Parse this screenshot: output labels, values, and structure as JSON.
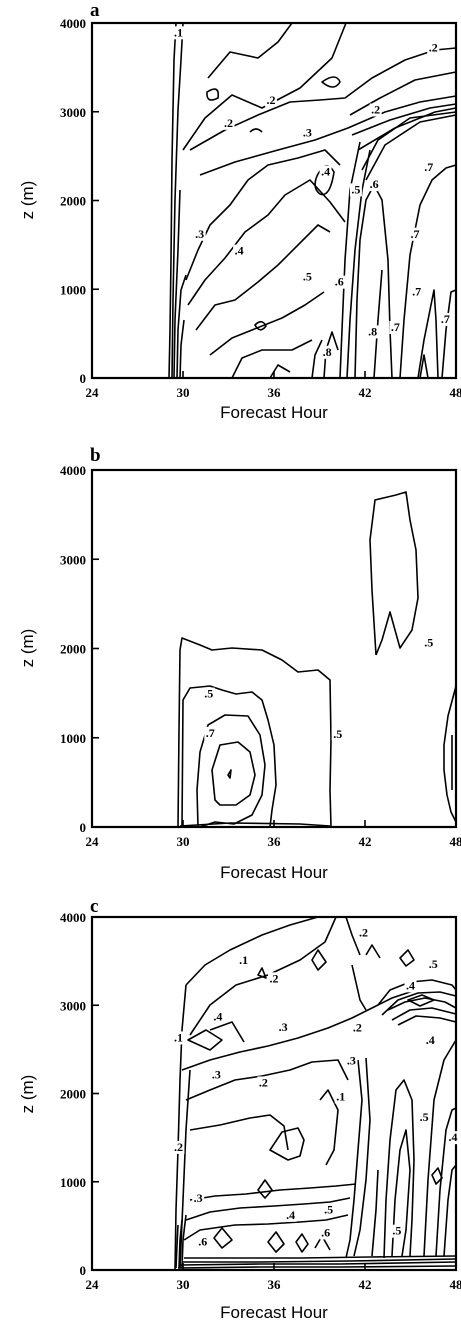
{
  "chart_data": [
    {
      "type": "contour",
      "panel_label": "a",
      "xlabel": "Forecast Hour",
      "ylabel": "z (m)",
      "xlim": [
        24,
        48
      ],
      "ylim": [
        0,
        4000
      ],
      "xticks": [
        24,
        30,
        36,
        42,
        48
      ],
      "yticks": [
        0,
        1000,
        2000,
        3000,
        4000
      ],
      "contour_labels": [
        {
          "text": ".1",
          "x": 29.7,
          "y": 3850
        },
        {
          "text": ".2",
          "x": 46.5,
          "y": 3680
        },
        {
          "text": ".2",
          "x": 35.8,
          "y": 3090
        },
        {
          "text": ".2",
          "x": 33.0,
          "y": 2830
        },
        {
          "text": ".2",
          "x": 42.7,
          "y": 2980
        },
        {
          "text": ".3",
          "x": 38.2,
          "y": 2720
        },
        {
          "text": ".4",
          "x": 39.4,
          "y": 2280
        },
        {
          "text": ".5",
          "x": 41.4,
          "y": 2080
        },
        {
          "text": ".6",
          "x": 42.6,
          "y": 2140
        },
        {
          "text": ".7",
          "x": 46.2,
          "y": 2330
        },
        {
          "text": ".7",
          "x": 45.3,
          "y": 1580
        },
        {
          "text": ".3",
          "x": 31.1,
          "y": 1580
        },
        {
          "text": ".4",
          "x": 33.7,
          "y": 1390
        },
        {
          "text": ".5",
          "x": 38.2,
          "y": 1100
        },
        {
          "text": ".6",
          "x": 40.3,
          "y": 1040
        },
        {
          "text": ".7",
          "x": 45.4,
          "y": 930
        },
        {
          "text": ".7",
          "x": 47.3,
          "y": 620
        },
        {
          "text": ".7",
          "x": 44.0,
          "y": 530
        },
        {
          "text": ".8",
          "x": 42.5,
          "y": 480
        },
        {
          "text": ".8",
          "x": 39.5,
          "y": 250
        }
      ]
    },
    {
      "type": "contour",
      "panel_label": "b",
      "xlabel": "Forecast Hour",
      "ylabel": "z (m)",
      "xlim": [
        24,
        48
      ],
      "ylim": [
        0,
        4000
      ],
      "xticks": [
        24,
        30,
        36,
        42,
        48
      ],
      "yticks": [
        0,
        1000,
        2000,
        3000,
        4000
      ],
      "contour_labels": [
        {
          "text": ".5",
          "x": 31.7,
          "y": 1450
        },
        {
          "text": ".7",
          "x": 31.8,
          "y": 1010
        },
        {
          "text": ".5",
          "x": 40.2,
          "y": 1000
        },
        {
          "text": ".5",
          "x": 46.2,
          "y": 2020
        }
      ]
    },
    {
      "type": "contour",
      "panel_label": "c",
      "xlabel": "Forecast Hour",
      "ylabel": "z (m)",
      "xlim": [
        24,
        48
      ],
      "ylim": [
        0,
        4000
      ],
      "xticks": [
        24,
        30,
        36,
        42,
        48
      ],
      "yticks": [
        0,
        1000,
        2000,
        3000,
        4000
      ],
      "contour_labels": [
        {
          "text": ".2",
          "x": 41.9,
          "y": 3780
        },
        {
          "text": ".1",
          "x": 34.0,
          "y": 3470
        },
        {
          "text": ".2",
          "x": 36.0,
          "y": 3260
        },
        {
          "text": ".5",
          "x": 46.5,
          "y": 3420
        },
        {
          "text": ".4",
          "x": 45.0,
          "y": 3180
        },
        {
          "text": ".4",
          "x": 32.3,
          "y": 2830
        },
        {
          "text": ".3",
          "x": 36.6,
          "y": 2710
        },
        {
          "text": ".2",
          "x": 41.5,
          "y": 2700
        },
        {
          "text": ".3",
          "x": 41.1,
          "y": 2330
        },
        {
          "text": ".4",
          "x": 46.3,
          "y": 2560
        },
        {
          "text": ".1",
          "x": 29.7,
          "y": 2590
        },
        {
          "text": ".3",
          "x": 32.2,
          "y": 2170
        },
        {
          "text": ".2",
          "x": 35.3,
          "y": 2080
        },
        {
          "text": ".1",
          "x": 40.4,
          "y": 1920
        },
        {
          "text": ".5",
          "x": 45.9,
          "y": 1690
        },
        {
          "text": ".4",
          "x": 47.8,
          "y": 1460
        },
        {
          "text": ".2",
          "x": 29.7,
          "y": 1350
        },
        {
          "text": ".3",
          "x": 31.0,
          "y": 770
        },
        {
          "text": ".4",
          "x": 37.1,
          "y": 580
        },
        {
          "text": ".5",
          "x": 39.6,
          "y": 640
        },
        {
          "text": ".6",
          "x": 39.4,
          "y": 380
        },
        {
          "text": ".5",
          "x": 44.1,
          "y": 400
        },
        {
          "text": ".6",
          "x": 31.3,
          "y": 280
        }
      ]
    }
  ]
}
